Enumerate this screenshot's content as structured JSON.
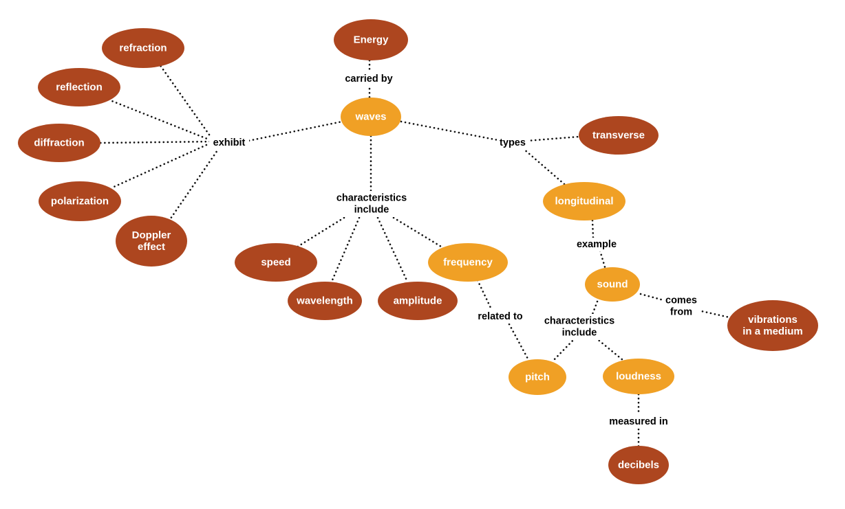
{
  "colors": {
    "primary_node": "#ad461f",
    "secondary_node": "#f0a025",
    "node_text": "#ffffff",
    "link_text": "#000000",
    "connector": "#111111"
  },
  "nodes": {
    "energy": "Energy",
    "waves": "waves",
    "refraction": "refraction",
    "reflection": "reflection",
    "diffraction": "diffraction",
    "polarization": "polarization",
    "doppler_effect": [
      "Doppler",
      "effect"
    ],
    "speed": "speed",
    "wavelength": "wavelength",
    "amplitude": "amplitude",
    "frequency": "frequency",
    "transverse": "transverse",
    "longitudinal": "longitudinal",
    "sound": "sound",
    "vibrations": [
      "vibrations",
      "in a medium"
    ],
    "pitch": "pitch",
    "loudness": "loudness",
    "decibels": "decibels"
  },
  "links": {
    "carried_by": "carried by",
    "exhibit": "exhibit",
    "types": "types",
    "characteristics_include_waves": [
      "characteristics",
      "include"
    ],
    "example": "example",
    "comes_from": [
      "comes",
      "from"
    ],
    "related_to": "related to",
    "characteristics_include_sound": [
      "characteristics",
      "include"
    ],
    "measured_in": "measured in"
  }
}
